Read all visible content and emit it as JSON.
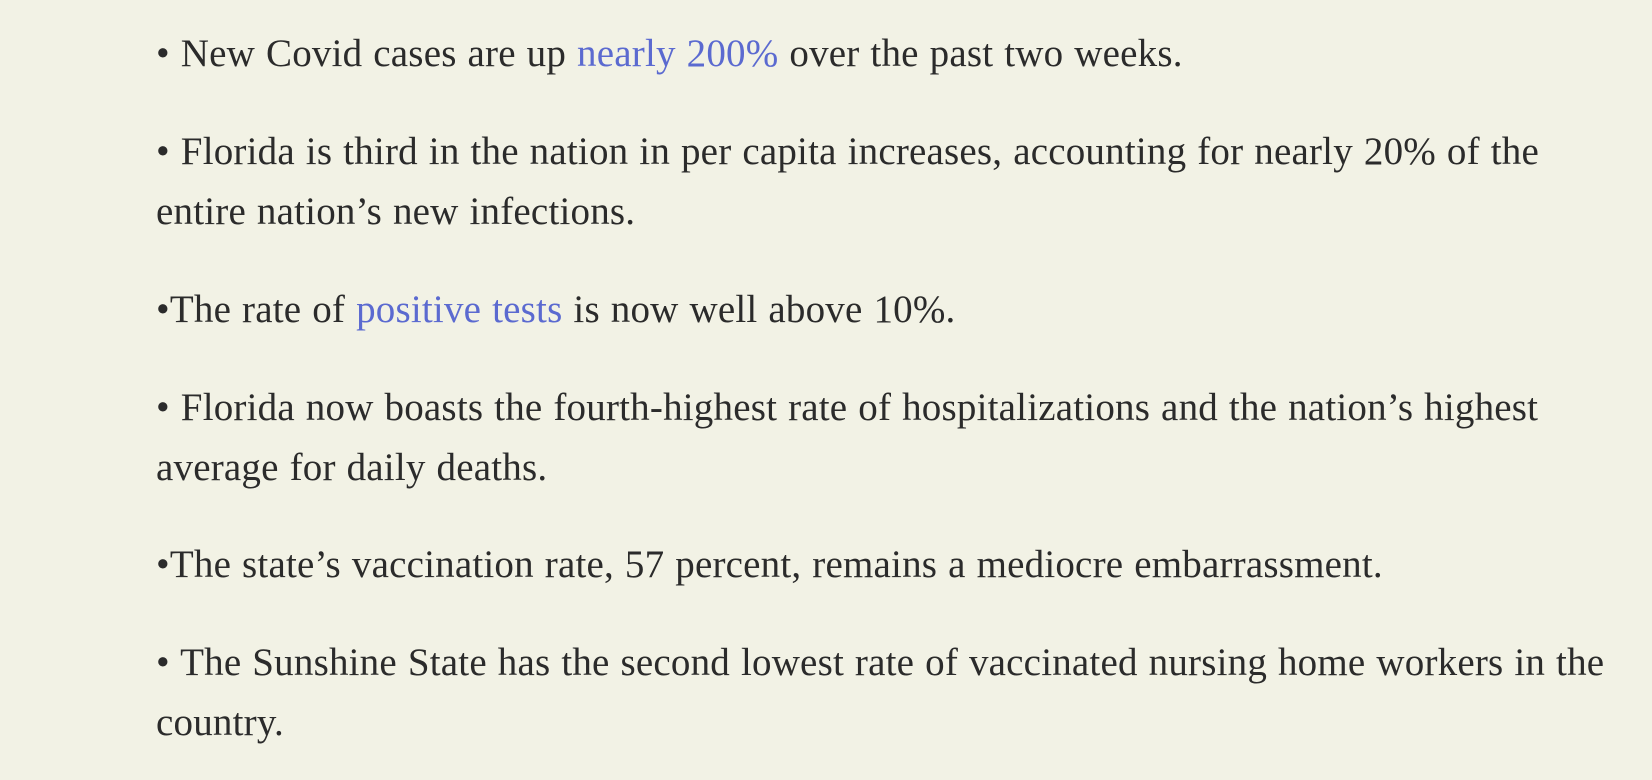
{
  "bullets": [
    {
      "before": "• New Covid cases are up ",
      "link": "nearly 200%",
      "after": " over the past two weeks."
    },
    {
      "text": "• Florida is third in the nation in per capita increases, accounting for nearly 20% of the entire nation’s new infections."
    },
    {
      "before": "•The rate of ",
      "link": "positive tests",
      "after": " is now well above 10%."
    },
    {
      "text": "• Florida now boasts the fourth-highest rate of hospitalizations and the nation’s highest average for daily deaths."
    },
    {
      "text": "•The state’s vaccination rate, 57 percent, remains a mediocre embarrassment."
    },
    {
      "text": "• The Sunshine State has the second lowest rate of vaccinated nursing home workers in the country."
    }
  ],
  "colors": {
    "background": "#f2f2e5",
    "text": "#2b2b2b",
    "link": "#5b6ad0"
  }
}
